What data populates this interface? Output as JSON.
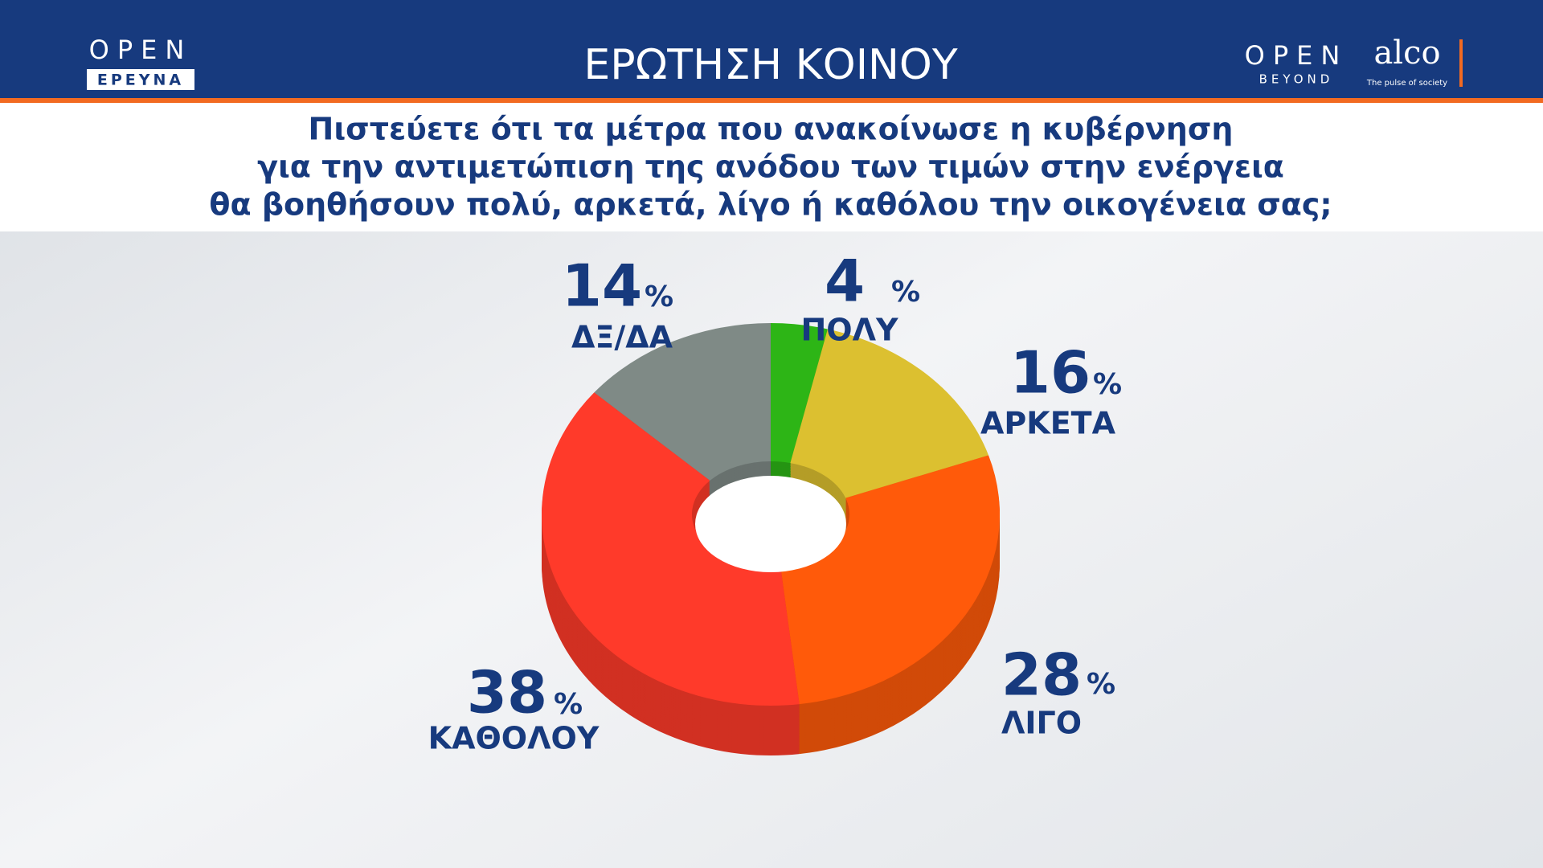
{
  "header": {
    "brand_left_top": "OPEN",
    "brand_left_bottom": "ΕΡΕΥΝΑ",
    "section": "ΕΡΩΤΗΣΗ ΚΟΙΝΟΥ",
    "brand_right_top": "OPEN",
    "brand_right_bottom": "BEYOND",
    "partner": "alco",
    "partner_tagline": "The pulse of society"
  },
  "chart_data": {
    "type": "donut",
    "title": [
      "Πιστεύετε ότι τα μέτρα που ανακοίνωσε η κυβέρνηση",
      "για την αντιμετώπιση της ανόδου των τιμών στην ενέργεια",
      "θα βοηθήσουν πολύ, αρκετά, λίγο ή καθόλου την οικογένεια σας;"
    ],
    "categories": [
      "ΠΟΛΥ",
      "ΑΡΚΕΤΑ",
      "ΛΙΓΟ",
      "ΚΑΘΟΛΟΥ",
      "ΔΞ/ΔΑ"
    ],
    "values": [
      4,
      16,
      28,
      38,
      14
    ],
    "unit": "%",
    "colors": [
      "#2db516",
      "#dcc030",
      "#ff5a0a",
      "#ff3a2a",
      "#7f8a86"
    ]
  }
}
